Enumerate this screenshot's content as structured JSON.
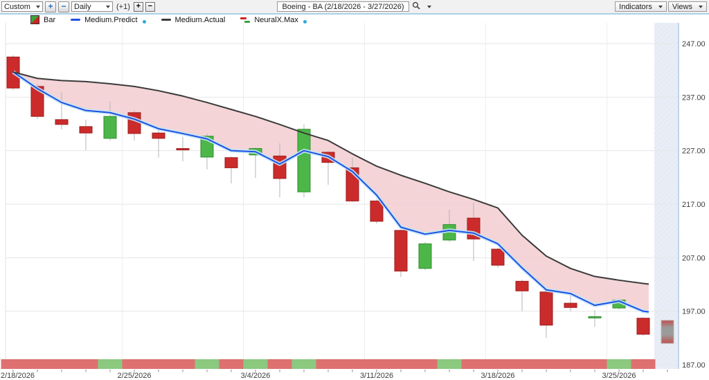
{
  "toolbar": {
    "period": "Custom",
    "zoom_in": "+",
    "zoom_out": "−",
    "interval": "Daily",
    "offset": "(+1)",
    "bar_add": "+",
    "bar_remove": "−",
    "symbol_title": "Boeing - BA (2/18/2026 - 3/27/2026)",
    "indicators": "Indicators",
    "views": "Views"
  },
  "legend": [
    {
      "label": "Bar"
    },
    {
      "label": "Medium.Predict"
    },
    {
      "label": "Medium.Actual"
    },
    {
      "label": "NeuralX.Max"
    }
  ],
  "colors": {
    "candle_up": "#4cb648",
    "candle_up_border": "#2f8f2f",
    "candle_down": "#cc2b2b",
    "candle_down_border": "#9c1e1e",
    "wick": "#b4b4b4",
    "predict_line": "#1d52e3",
    "predict_glow": "#c2e4f6",
    "actual_line": "#3a3a3a",
    "band": "#f2ccd0",
    "strip_up": "#8bc97f",
    "strip_down": "#df7070",
    "future_bg": "#e9eef6",
    "future_hatch": "#dde5f1",
    "future_border": "#c3d2e8",
    "grid": "#e6e6e6",
    "grid_v": "#ededed",
    "axis_text": "#3c3c3c",
    "tick": "#8a8a8a",
    "proj_border": "#b5b5b5",
    "proj_red": "#c14f4f",
    "proj_gray": "#9b9b9b"
  },
  "chart_data": {
    "type": "candlestick",
    "title": "Boeing - BA (2/18/2026 - 3/27/2026)",
    "ylim": [
      187,
      251
    ],
    "grid": true,
    "legend_position": "top-left",
    "y_ticks": [
      {
        "v": 247,
        "label": "247.00"
      },
      {
        "v": 237,
        "label": "237.00"
      },
      {
        "v": 227,
        "label": "227.00"
      },
      {
        "v": 217,
        "label": "217.00"
      },
      {
        "v": 207,
        "label": "207.00"
      },
      {
        "v": 197,
        "label": "197.00"
      },
      {
        "v": 187,
        "label": "187.00"
      }
    ],
    "x_ticks": [
      {
        "day": 0,
        "label": "2/18/2026"
      },
      {
        "day": 5,
        "label": "2/25/2026"
      },
      {
        "day": 10,
        "label": "3/4/2026"
      },
      {
        "day": 15,
        "label": "3/11/2026"
      },
      {
        "day": 20,
        "label": "3/18/2026"
      },
      {
        "day": 25,
        "label": "3/25/2026"
      }
    ],
    "dates": [
      "2/18",
      "2/19",
      "2/20",
      "2/23",
      "2/24",
      "2/25",
      "2/26",
      "2/27",
      "3/2",
      "3/3",
      "3/4",
      "3/5",
      "3/6",
      "3/9",
      "3/10",
      "3/11",
      "3/12",
      "3/13",
      "3/16",
      "3/17",
      "3/18",
      "3/19",
      "3/20",
      "3/23",
      "3/24",
      "3/25",
      "3/26"
    ],
    "candles": [
      {
        "date": "2/18",
        "o": 244.5,
        "h": 244.8,
        "l": 238.3,
        "c": 238.7,
        "dir": "down"
      },
      {
        "date": "2/19",
        "o": 239.0,
        "h": 239.4,
        "l": 232.9,
        "c": 233.4,
        "dir": "down"
      },
      {
        "date": "2/20",
        "o": 232.8,
        "h": 238.0,
        "l": 231.0,
        "c": 231.9,
        "dir": "down"
      },
      {
        "date": "2/23",
        "o": 231.5,
        "h": 232.8,
        "l": 227.1,
        "c": 230.3,
        "dir": "down"
      },
      {
        "date": "2/24",
        "o": 229.3,
        "h": 236.2,
        "l": 228.9,
        "c": 233.4,
        "dir": "up"
      },
      {
        "date": "2/25",
        "o": 234.1,
        "h": 234.5,
        "l": 228.9,
        "c": 230.2,
        "dir": "down"
      },
      {
        "date": "2/26",
        "o": 230.3,
        "h": 230.8,
        "l": 225.7,
        "c": 229.3,
        "dir": "down"
      },
      {
        "date": "2/27",
        "o": 227.4,
        "h": 229.6,
        "l": 225.0,
        "c": 227.3,
        "dir": "down"
      },
      {
        "date": "3/2",
        "o": 225.8,
        "h": 230.2,
        "l": 223.5,
        "c": 229.7,
        "dir": "up"
      },
      {
        "date": "3/3",
        "o": 225.7,
        "h": 225.9,
        "l": 220.9,
        "c": 223.8,
        "dir": "down"
      },
      {
        "date": "3/4",
        "o": 226.2,
        "h": 227.6,
        "l": 221.9,
        "c": 227.4,
        "dir": "up"
      },
      {
        "date": "3/5",
        "o": 226.0,
        "h": 228.4,
        "l": 218.3,
        "c": 221.8,
        "dir": "down"
      },
      {
        "date": "3/6",
        "o": 219.3,
        "h": 231.9,
        "l": 218.3,
        "c": 231.0,
        "dir": "up"
      },
      {
        "date": "3/9",
        "o": 226.7,
        "h": 226.9,
        "l": 220.6,
        "c": 224.8,
        "dir": "down"
      },
      {
        "date": "3/10",
        "o": 223.8,
        "h": 225.7,
        "l": 217.4,
        "c": 217.6,
        "dir": "down"
      },
      {
        "date": "3/11",
        "o": 217.6,
        "h": 217.9,
        "l": 213.4,
        "c": 213.8,
        "dir": "down"
      },
      {
        "date": "3/12",
        "o": 212.1,
        "h": 212.3,
        "l": 203.4,
        "c": 204.5,
        "dir": "down"
      },
      {
        "date": "3/13",
        "o": 205.0,
        "h": 209.9,
        "l": 204.7,
        "c": 209.6,
        "dir": "up"
      },
      {
        "date": "3/16",
        "o": 210.3,
        "h": 216.0,
        "l": 209.9,
        "c": 213.2,
        "dir": "up"
      },
      {
        "date": "3/17",
        "o": 214.4,
        "h": 217.3,
        "l": 206.4,
        "c": 210.5,
        "dir": "down"
      },
      {
        "date": "3/18",
        "o": 208.6,
        "h": 208.8,
        "l": 205.1,
        "c": 205.6,
        "dir": "down"
      },
      {
        "date": "3/19",
        "o": 202.6,
        "h": 202.9,
        "l": 197.0,
        "c": 200.8,
        "dir": "down"
      },
      {
        "date": "3/20",
        "o": 200.6,
        "h": 200.8,
        "l": 192.0,
        "c": 194.4,
        "dir": "down"
      },
      {
        "date": "3/23",
        "o": 198.5,
        "h": 200.2,
        "l": 197.0,
        "c": 197.7,
        "dir": "down"
      },
      {
        "date": "3/24",
        "o": 195.9,
        "h": 197.2,
        "l": 194.1,
        "c": 196.0,
        "dir": "up"
      },
      {
        "date": "3/25",
        "o": 197.6,
        "h": 199.4,
        "l": 197.3,
        "c": 199.1,
        "dir": "up"
      },
      {
        "date": "3/26",
        "o": 195.7,
        "h": 195.9,
        "l": 192.4,
        "c": 192.7,
        "dir": "down"
      }
    ],
    "projection_candle": {
      "date": "3/27",
      "top": 195.3,
      "bottom": 191.0
    },
    "series": [
      {
        "name": "Medium.Predict",
        "values": [
          241.7,
          238.6,
          236.0,
          234.5,
          234.1,
          232.9,
          231.1,
          230.2,
          229.2,
          227.0,
          226.8,
          224.5,
          227.0,
          225.9,
          223.1,
          218.7,
          212.7,
          211.4,
          212.1,
          211.6,
          209.6,
          205.1,
          201.0,
          200.3,
          198.1,
          198.9,
          197.0
        ]
      },
      {
        "name": "Medium.Actual",
        "values": [
          241.7,
          240.5,
          240.1,
          239.9,
          239.5,
          239.0,
          238.2,
          237.2,
          236.0,
          234.7,
          233.4,
          231.9,
          230.3,
          228.9,
          226.4,
          224.1,
          222.4,
          220.9,
          219.3,
          217.9,
          216.3,
          211.2,
          207.3,
          205.0,
          203.5,
          202.8,
          202.2
        ]
      }
    ],
    "band_name": "NeuralX.Max",
    "signal_strip": [
      "down",
      "down",
      "down",
      "down",
      "up",
      "down",
      "down",
      "down",
      "up",
      "down",
      "up",
      "down",
      "up",
      "down",
      "down",
      "down",
      "down",
      "down",
      "up",
      "down",
      "down",
      "down",
      "down",
      "down",
      "down",
      "up",
      "down"
    ]
  }
}
